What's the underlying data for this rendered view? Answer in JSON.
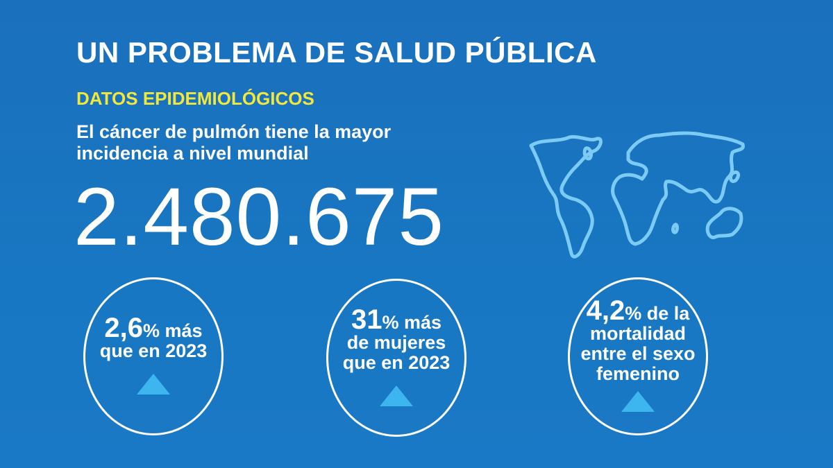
{
  "title": "UN PROBLEMA DE SALUD PÚBLICA",
  "subtitle": "DATOS EPIDEMIOLÓGICOS",
  "lead": {
    "line1": "El cáncer de pulmón tiene la mayor",
    "line2": "incidencia a nivel mundial"
  },
  "big_number": "2.480.675",
  "stats": [
    {
      "num": "2,6",
      "rest1": "% más",
      "lines": [
        "que en 2023"
      ]
    },
    {
      "num": "31",
      "rest1": "% más",
      "lines": [
        "de mujeres",
        "que en 2023"
      ]
    },
    {
      "num": "4,2",
      "rest1": "% de la",
      "lines": [
        "mortalidad",
        "entre el sexo",
        "femenino"
      ]
    }
  ],
  "icons": {
    "map": "world-map-icon",
    "trend": "triangle-up-icon"
  },
  "colors": {
    "background": "#1a74c0",
    "accent_yellow": "#f2e83a",
    "triangle": "#3db6ef",
    "map_stroke": "#7ccbf5"
  }
}
